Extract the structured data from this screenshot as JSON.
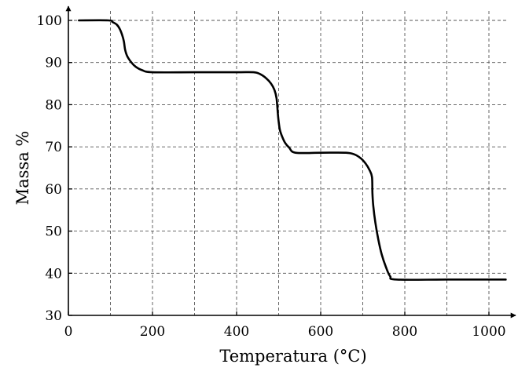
{
  "chart_data": {
    "type": "line",
    "title": "",
    "xlabel": "Temperatura (°C)",
    "ylabel": "Massa %",
    "xlim": [
      0,
      1040
    ],
    "ylim": [
      30,
      102
    ],
    "xticks": [
      0,
      200,
      400,
      600,
      800,
      1000
    ],
    "xtick_labels": [
      "0",
      "200",
      "400",
      "600",
      "800",
      "1000"
    ],
    "yticks": [
      30,
      40,
      50,
      60,
      70,
      80,
      90,
      100
    ],
    "ytick_labels": [
      "30",
      "40",
      "50",
      "60",
      "70",
      "80",
      "90",
      "100"
    ],
    "x_gridlines": [
      100,
      200,
      300,
      400,
      500,
      600,
      700,
      800,
      900,
      1000
    ],
    "y_gridlines": [
      40,
      50,
      60,
      70,
      80,
      90,
      100
    ],
    "grid": true,
    "grid_style": "dashed",
    "legend": "none",
    "series": [
      {
        "color": "#000000",
        "points": [
          [
            25,
            100
          ],
          [
            95,
            100
          ],
          [
            105,
            99.6
          ],
          [
            115,
            99
          ],
          [
            122,
            98
          ],
          [
            128,
            96.5
          ],
          [
            132,
            95
          ],
          [
            135,
            93
          ],
          [
            140,
            91.5
          ],
          [
            150,
            90
          ],
          [
            160,
            89
          ],
          [
            175,
            88.2
          ],
          [
            200,
            87.7
          ],
          [
            300,
            87.7
          ],
          [
            400,
            87.7
          ],
          [
            440,
            87.7
          ],
          [
            455,
            87.3
          ],
          [
            470,
            86.3
          ],
          [
            482,
            85
          ],
          [
            490,
            83.5
          ],
          [
            495,
            81.5
          ],
          [
            498,
            78
          ],
          [
            500,
            76
          ],
          [
            503,
            74
          ],
          [
            508,
            72.5
          ],
          [
            515,
            71
          ],
          [
            525,
            69.8
          ],
          [
            540,
            68.6
          ],
          [
            600,
            68.6
          ],
          [
            660,
            68.6
          ],
          [
            680,
            68.2
          ],
          [
            695,
            67.3
          ],
          [
            707,
            66
          ],
          [
            716,
            64.5
          ],
          [
            722,
            62.8
          ],
          [
            723,
            59
          ],
          [
            725,
            56
          ],
          [
            730,
            52
          ],
          [
            737,
            48
          ],
          [
            745,
            44.5
          ],
          [
            755,
            41.5
          ],
          [
            765,
            39.3
          ],
          [
            780,
            38.5
          ],
          [
            900,
            38.5
          ],
          [
            1040,
            38.5
          ]
        ]
      }
    ]
  }
}
